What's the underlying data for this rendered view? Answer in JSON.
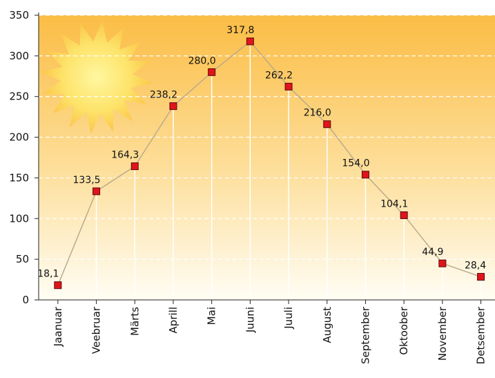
{
  "chart_data": {
    "type": "line",
    "categories": [
      "Jaanuar",
      "Veebruar",
      "Märts",
      "Aprill",
      "Mai",
      "Juuni",
      "Juuli",
      "August",
      "September",
      "Oktoober",
      "November",
      "Detsember"
    ],
    "values": [
      18.1,
      133.5,
      164.3,
      238.2,
      280.0,
      317.8,
      262.2,
      216.0,
      154.0,
      104.1,
      44.9,
      28.4
    ],
    "value_labels": [
      "18,1",
      "133,5",
      "164,3",
      "238,2",
      "280,0",
      "317,8",
      "262,2",
      "216,0",
      "154,0",
      "104,1",
      "44,9",
      "28,4"
    ],
    "color": "#b9ab8c",
    "marker_color": "#e0141c",
    "ylim": [
      0,
      350
    ],
    "yticks": [
      0,
      50,
      100,
      150,
      200,
      250,
      300,
      350
    ],
    "grid": true
  }
}
